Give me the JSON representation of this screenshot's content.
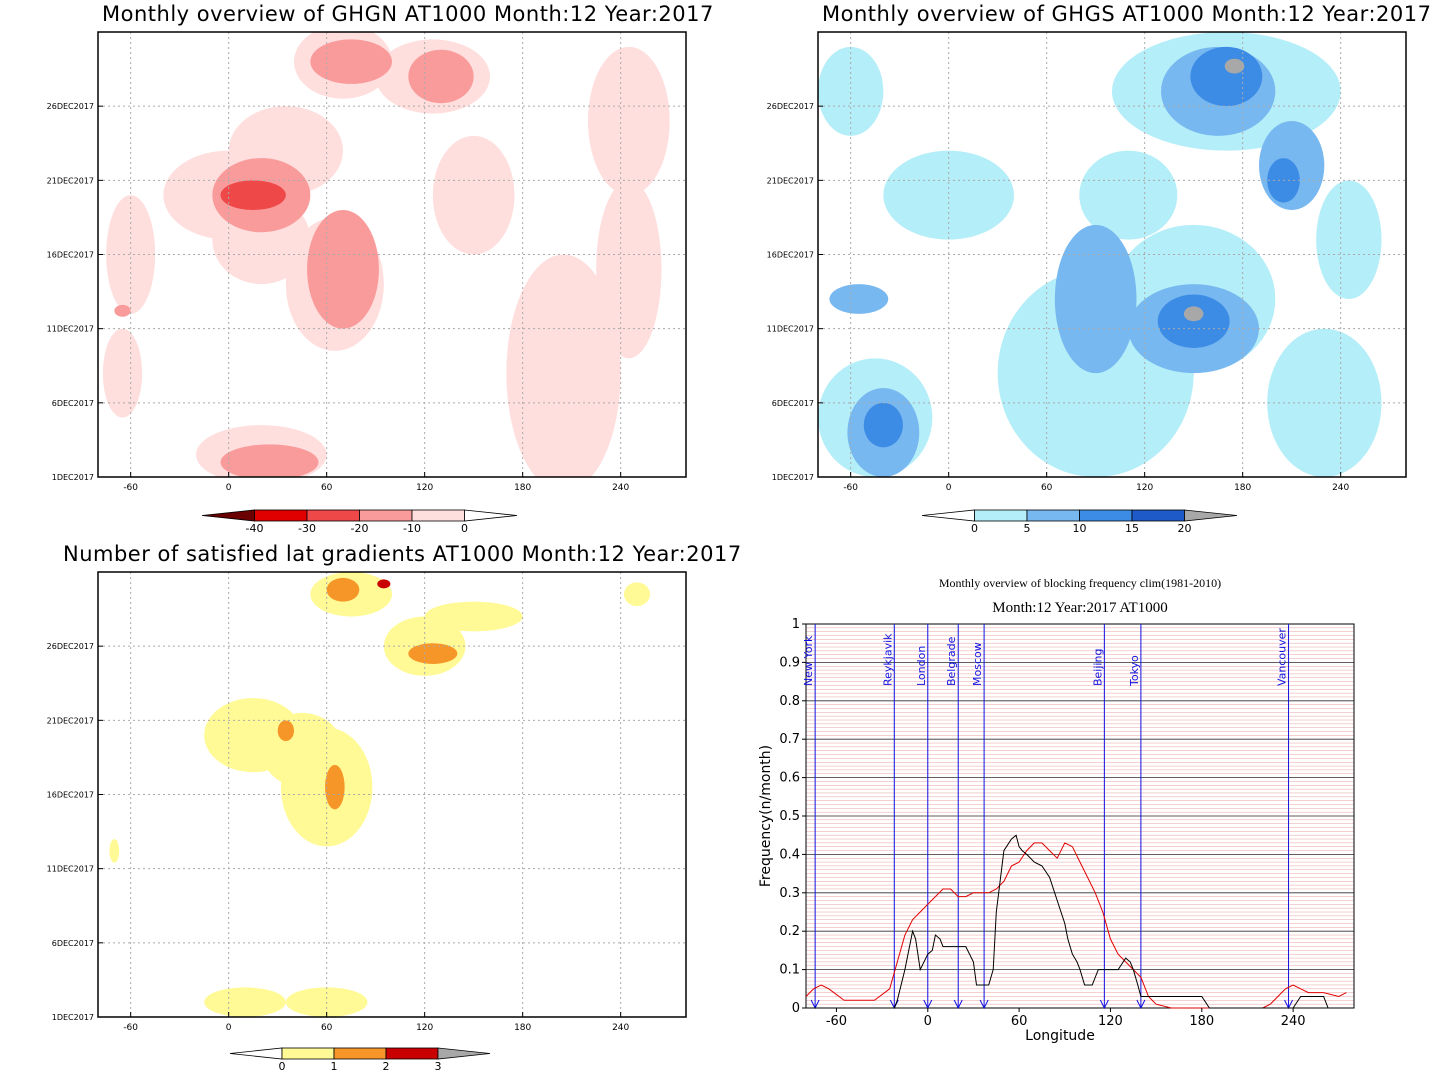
{
  "panels": {
    "ghgn": {
      "title": "Monthly overview of GHGN AT1000 Month:12 Year:2017",
      "x_ticks": [
        "-60",
        "0",
        "60",
        "120",
        "180",
        "240"
      ],
      "y_ticks": [
        "1DEC2017",
        "6DEC2017",
        "11DEC2017",
        "16DEC2017",
        "21DEC2017",
        "26DEC2017"
      ],
      "colorbar": {
        "labels": [
          "-40",
          "-30",
          "-20",
          "-10",
          "0"
        ],
        "colors": [
          "#6b0000",
          "#e00000",
          "#ee4848",
          "#fa9b9b",
          "#ffdede",
          "#ffffff"
        ]
      }
    },
    "ghgs": {
      "title": "Monthly overview of GHGS AT1000 Month:12 Year:2017",
      "x_ticks": [
        "-60",
        "0",
        "60",
        "120",
        "180",
        "240"
      ],
      "y_ticks": [
        "1DEC2017",
        "6DEC2017",
        "11DEC2017",
        "16DEC2017",
        "21DEC2017",
        "26DEC2017"
      ],
      "colorbar": {
        "labels": [
          "0",
          "5",
          "10",
          "15",
          "20"
        ],
        "colors": [
          "#ffffff",
          "#b4eef8",
          "#78b8f0",
          "#3c8ce6",
          "#1e5ac8",
          "#a8a8a8"
        ]
      }
    },
    "gradients": {
      "title": "Number of satisfied lat gradients AT1000 Month:12 Year:2017",
      "x_ticks": [
        "-60",
        "0",
        "60",
        "120",
        "180",
        "240"
      ],
      "y_ticks": [
        "1DEC2017",
        "6DEC2017",
        "11DEC2017",
        "16DEC2017",
        "21DEC2017",
        "26DEC2017"
      ],
      "colorbar": {
        "labels": [
          "0",
          "1",
          "2",
          "3"
        ],
        "colors": [
          "#ffffff",
          "#fffa96",
          "#f79628",
          "#c80000",
          "#a8a8a8"
        ]
      }
    },
    "blocking": {
      "title_line1": "Monthly overview of blocking frequency clim(1981-2010)",
      "title_line2": "Month:12 Year:2017 AT1000",
      "ylabel": "Frequency(n/month)",
      "xlabel": "Longitude"
    }
  },
  "chart_data": [
    {
      "type": "heatmap",
      "title": "Monthly overview of GHGN AT1000 Month:12 Year:2017",
      "x_ticks": [
        -60,
        0,
        60,
        120,
        180,
        240
      ],
      "y_ticks": [
        "1DEC2017",
        "6DEC2017",
        "11DEC2017",
        "16DEC2017",
        "21DEC2017",
        "26DEC2017"
      ],
      "levels": [
        -40,
        -30,
        -20,
        -10,
        0
      ],
      "blobs": [
        {
          "level": -10,
          "lon": 0,
          "day": 20,
          "rlon": 40,
          "rday": 3
        },
        {
          "level": -10,
          "lon": 20,
          "day": 17,
          "rlon": 30,
          "rday": 3
        },
        {
          "level": -10,
          "lon": 65,
          "day": 14,
          "rlon": 30,
          "rday": 4.5
        },
        {
          "level": -10,
          "lon": 35,
          "day": 23,
          "rlon": 35,
          "rday": 3
        },
        {
          "level": -10,
          "lon": 70,
          "day": 29,
          "rlon": 30,
          "rday": 2.5
        },
        {
          "level": -10,
          "lon": 125,
          "day": 28,
          "rlon": 35,
          "rday": 2.5
        },
        {
          "level": -10,
          "lon": 20,
          "day": 2.5,
          "rlon": 40,
          "rday": 2
        },
        {
          "level": -10,
          "lon": 150,
          "day": 20,
          "rlon": 25,
          "rday": 4
        },
        {
          "level": -10,
          "lon": 205,
          "day": 8,
          "rlon": 35,
          "rday": 8
        },
        {
          "level": -10,
          "lon": 245,
          "day": 15,
          "rlon": 20,
          "rday": 6
        },
        {
          "level": -10,
          "lon": 245,
          "day": 25,
          "rlon": 25,
          "rday": 5
        },
        {
          "level": -10,
          "lon": -65,
          "day": 8,
          "rlon": 12,
          "rday": 3
        },
        {
          "level": -10,
          "lon": -60,
          "day": 16,
          "rlon": 15,
          "rday": 4
        },
        {
          "level": -20,
          "lon": 20,
          "day": 20,
          "rlon": 30,
          "rday": 2.5
        },
        {
          "level": -20,
          "lon": 70,
          "day": 15,
          "rlon": 22,
          "rday": 4
        },
        {
          "level": -20,
          "lon": 75,
          "day": 29,
          "rlon": 25,
          "rday": 1.5
        },
        {
          "level": -20,
          "lon": 130,
          "day": 28,
          "rlon": 20,
          "rday": 1.8
        },
        {
          "level": -20,
          "lon": 25,
          "day": 2,
          "rlon": 30,
          "rday": 1.2
        },
        {
          "level": -20,
          "lon": -65,
          "day": 12.2,
          "rlon": 5,
          "rday": 0.4
        },
        {
          "level": -30,
          "lon": 15,
          "day": 20,
          "rlon": 20,
          "rday": 1
        }
      ]
    },
    {
      "type": "heatmap",
      "title": "Monthly overview of GHGS AT1000 Month:12 Year:2017",
      "x_ticks": [
        -60,
        0,
        60,
        120,
        180,
        240
      ],
      "y_ticks": [
        "1DEC2017",
        "6DEC2017",
        "11DEC2017",
        "16DEC2017",
        "21DEC2017",
        "26DEC2017"
      ],
      "levels": [
        0,
        5,
        10,
        15,
        20
      ],
      "blobs": [
        {
          "level": 5,
          "lon": -45,
          "day": 5,
          "rlon": 35,
          "rday": 4
        },
        {
          "level": 5,
          "lon": 0,
          "day": 20,
          "rlon": 40,
          "rday": 3
        },
        {
          "level": 5,
          "lon": 90,
          "day": 8,
          "rlon": 60,
          "rday": 7
        },
        {
          "level": 5,
          "lon": 170,
          "day": 27,
          "rlon": 70,
          "rday": 4
        },
        {
          "level": 5,
          "lon": 150,
          "day": 13,
          "rlon": 50,
          "rday": 5
        },
        {
          "level": 5,
          "lon": 230,
          "day": 6,
          "rlon": 35,
          "rday": 5
        },
        {
          "level": 5,
          "lon": -60,
          "day": 27,
          "rlon": 20,
          "rday": 3
        },
        {
          "level": 5,
          "lon": 245,
          "day": 17,
          "rlon": 20,
          "rday": 4
        },
        {
          "level": 5,
          "lon": 110,
          "day": 20,
          "rlon": 30,
          "rday": 3
        },
        {
          "level": 10,
          "lon": -40,
          "day": 4,
          "rlon": 22,
          "rday": 3
        },
        {
          "level": 10,
          "lon": 90,
          "day": 13,
          "rlon": 25,
          "rday": 5
        },
        {
          "level": 10,
          "lon": 150,
          "day": 11,
          "rlon": 40,
          "rday": 3
        },
        {
          "level": 10,
          "lon": 165,
          "day": 27,
          "rlon": 35,
          "rday": 3
        },
        {
          "level": 10,
          "lon": 210,
          "day": 22,
          "rlon": 20,
          "rday": 3
        },
        {
          "level": 10,
          "lon": -55,
          "day": 13,
          "rlon": 18,
          "rday": 1
        },
        {
          "level": 15,
          "lon": -40,
          "day": 4.5,
          "rlon": 12,
          "rday": 1.5
        },
        {
          "level": 15,
          "lon": 150,
          "day": 11.5,
          "rlon": 22,
          "rday": 1.8
        },
        {
          "level": 15,
          "lon": 170,
          "day": 28,
          "rlon": 22,
          "rday": 2
        },
        {
          "level": 15,
          "lon": 205,
          "day": 21,
          "rlon": 10,
          "rday": 1.5
        },
        {
          "level": 20,
          "lon": 150,
          "day": 12,
          "rlon": 6,
          "rday": 0.5
        },
        {
          "level": 20,
          "lon": 175,
          "day": 28.7,
          "rlon": 6,
          "rday": 0.5
        }
      ]
    },
    {
      "type": "heatmap",
      "title": "Number of satisfied lat gradients AT1000 Month:12 Year:2017",
      "x_ticks": [
        -60,
        0,
        60,
        120,
        180,
        240
      ],
      "y_ticks": [
        "1DEC2017",
        "6DEC2017",
        "11DEC2017",
        "16DEC2017",
        "21DEC2017",
        "26DEC2017"
      ],
      "levels": [
        0,
        1,
        2,
        3
      ],
      "blobs": [
        {
          "level": 1,
          "lon": 15,
          "day": 20,
          "rlon": 30,
          "rday": 2.5
        },
        {
          "level": 1,
          "lon": 60,
          "day": 16.5,
          "rlon": 28,
          "rday": 4
        },
        {
          "level": 1,
          "lon": 45,
          "day": 19,
          "rlon": 25,
          "rday": 2.5
        },
        {
          "level": 1,
          "lon": 120,
          "day": 26,
          "rlon": 25,
          "rday": 2
        },
        {
          "level": 1,
          "lon": 150,
          "day": 28,
          "rlon": 30,
          "rday": 1
        },
        {
          "level": 1,
          "lon": 75,
          "day": 29.5,
          "rlon": 25,
          "rday": 1.5
        },
        {
          "level": 1,
          "lon": 10,
          "day": 2,
          "rlon": 25,
          "rday": 1
        },
        {
          "level": 1,
          "lon": 60,
          "day": 2,
          "rlon": 25,
          "rday": 1
        },
        {
          "level": 1,
          "lon": -70,
          "day": 12.2,
          "rlon": 3,
          "rday": 0.8
        },
        {
          "level": 1,
          "lon": 250,
          "day": 29.5,
          "rlon": 8,
          "rday": 0.8
        },
        {
          "level": 2,
          "lon": 65,
          "day": 16.5,
          "rlon": 6,
          "rday": 1.5
        },
        {
          "level": 2,
          "lon": 35,
          "day": 20.3,
          "rlon": 5,
          "rday": 0.7
        },
        {
          "level": 2,
          "lon": 125,
          "day": 25.5,
          "rlon": 15,
          "rday": 0.7
        },
        {
          "level": 2,
          "lon": 70,
          "day": 29.8,
          "rlon": 10,
          "rday": 0.8
        },
        {
          "level": 3,
          "lon": 95,
          "day": 30.2,
          "rlon": 4,
          "rday": 0.3
        }
      ]
    },
    {
      "type": "line",
      "title": "Monthly overview of blocking frequency clim(1981-2010)",
      "subtitle": "Month:12 Year:2017 AT1000",
      "xlabel": "Longitude",
      "ylabel": "Frequency(n/month)",
      "xlim": [
        -80,
        280
      ],
      "ylim": [
        0,
        1
      ],
      "x_ticks": [
        -60,
        0,
        60,
        120,
        180,
        240
      ],
      "y_ticks": [
        0,
        0.1,
        0.2,
        0.3,
        0.4,
        0.5,
        0.6,
        0.7,
        0.8,
        0.9,
        1
      ],
      "city_markers": [
        {
          "name": "New York",
          "lon": -74
        },
        {
          "name": "Reykjavik",
          "lon": -22
        },
        {
          "name": "London",
          "lon": 0
        },
        {
          "name": "Belgrade",
          "lon": 20
        },
        {
          "name": "Moscow",
          "lon": 37
        },
        {
          "name": "Beijing",
          "lon": 116
        },
        {
          "name": "Tokyo",
          "lon": 140
        },
        {
          "name": "Vancouver",
          "lon": 237
        }
      ],
      "series": [
        {
          "color": "#e00000",
          "x": [
            -80,
            -75,
            -70,
            -65,
            -55,
            -45,
            -35,
            -25,
            -20,
            -15,
            -10,
            -5,
            0,
            5,
            10,
            15,
            20,
            25,
            30,
            35,
            40,
            45,
            50,
            55,
            60,
            65,
            70,
            75,
            80,
            85,
            90,
            95,
            100,
            105,
            110,
            115,
            120,
            125,
            130,
            135,
            140,
            145,
            150,
            160,
            170,
            180,
            190,
            200,
            210,
            220,
            225,
            230,
            235,
            240,
            245,
            250,
            260,
            270,
            275
          ],
          "y": [
            0.03,
            0.05,
            0.06,
            0.05,
            0.02,
            0.02,
            0.02,
            0.05,
            0.12,
            0.19,
            0.23,
            0.25,
            0.27,
            0.29,
            0.31,
            0.31,
            0.29,
            0.29,
            0.3,
            0.3,
            0.3,
            0.31,
            0.33,
            0.37,
            0.38,
            0.41,
            0.43,
            0.43,
            0.41,
            0.39,
            0.43,
            0.42,
            0.38,
            0.34,
            0.3,
            0.25,
            0.18,
            0.14,
            0.12,
            0.1,
            0.08,
            0.03,
            0.01,
            0.0,
            0.0,
            0.0,
            0.0,
            0.0,
            0.0,
            0.0,
            0.01,
            0.03,
            0.05,
            0.06,
            0.05,
            0.04,
            0.04,
            0.03,
            0.04
          ]
        },
        {
          "color": "#000000",
          "x": [
            -80,
            -50,
            -40,
            -30,
            -25,
            -22,
            -20,
            -15,
            -10,
            -8,
            -5,
            0,
            3,
            5,
            8,
            10,
            12,
            15,
            20,
            25,
            30,
            32,
            35,
            40,
            43,
            45,
            50,
            55,
            58,
            60,
            62,
            65,
            70,
            75,
            80,
            85,
            90,
            92,
            95,
            98,
            100,
            103,
            108,
            112,
            115,
            120,
            125,
            130,
            133,
            135,
            138,
            140,
            145,
            150,
            160,
            170,
            180,
            185,
            190,
            200,
            210,
            220,
            230,
            235,
            240,
            245,
            250,
            255,
            260,
            263,
            265
          ],
          "y": [
            0.0,
            0.0,
            0.0,
            0.0,
            0.0,
            0.0,
            0.02,
            0.1,
            0.2,
            0.18,
            0.1,
            0.14,
            0.15,
            0.19,
            0.18,
            0.16,
            0.16,
            0.16,
            0.16,
            0.16,
            0.12,
            0.06,
            0.06,
            0.06,
            0.1,
            0.25,
            0.41,
            0.44,
            0.45,
            0.42,
            0.41,
            0.4,
            0.38,
            0.37,
            0.34,
            0.28,
            0.22,
            0.18,
            0.14,
            0.12,
            0.1,
            0.06,
            0.06,
            0.1,
            0.1,
            0.1,
            0.1,
            0.13,
            0.12,
            0.1,
            0.06,
            0.03,
            0.03,
            0.03,
            0.03,
            0.03,
            0.03,
            0.0,
            0.0,
            0.0,
            0.0,
            0.0,
            0.0,
            0.0,
            0.0,
            0.03,
            0.03,
            0.03,
            0.03,
            0.0,
            0.0
          ]
        }
      ]
    }
  ]
}
